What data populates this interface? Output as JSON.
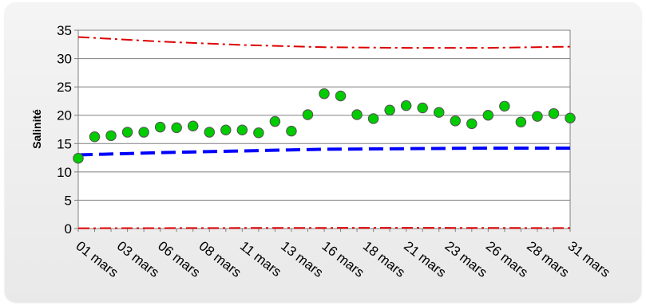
{
  "chart_data": {
    "type": "line",
    "title": "",
    "xlabel": "",
    "ylabel": "Salinité",
    "ylim": [
      0,
      35
    ],
    "yticks": [
      0,
      5,
      10,
      15,
      20,
      25,
      30,
      35
    ],
    "grid": "horizontal",
    "legend": "none",
    "x_tick_labels": [
      "01 mars",
      "03 mars",
      "06 mars",
      "08 mars",
      "11 mars",
      "13 mars",
      "16 mars",
      "18 mars",
      "21 mars",
      "23 mars",
      "26 mars",
      "28 mars",
      "31 mars"
    ],
    "series": [
      {
        "role": "observations",
        "color": "#00cc00",
        "marker": "circle",
        "points": [
          {
            "day": 0.0,
            "value": 12.4
          },
          {
            "day": 1.0,
            "value": 16.2
          },
          {
            "day": 2.0,
            "value": 16.4
          },
          {
            "day": 3.0,
            "value": 17.0
          },
          {
            "day": 4.0,
            "value": 17.0
          },
          {
            "day": 5.0,
            "value": 17.9
          },
          {
            "day": 6.0,
            "value": 17.8
          },
          {
            "day": 7.0,
            "value": 18.1
          },
          {
            "day": 8.0,
            "value": 17.0
          },
          {
            "day": 9.0,
            "value": 17.4
          },
          {
            "day": 10.0,
            "value": 17.4
          },
          {
            "day": 11.0,
            "value": 16.9
          },
          {
            "day": 12.0,
            "value": 18.9
          },
          {
            "day": 13.0,
            "value": 17.2
          },
          {
            "day": 14.0,
            "value": 20.1
          },
          {
            "day": 15.0,
            "value": 23.8
          },
          {
            "day": 16.0,
            "value": 23.4
          },
          {
            "day": 17.0,
            "value": 20.1
          },
          {
            "day": 18.0,
            "value": 19.4
          },
          {
            "day": 19.0,
            "value": 20.9
          },
          {
            "day": 20.0,
            "value": 21.7
          },
          {
            "day": 21.0,
            "value": 21.3
          },
          {
            "day": 22.0,
            "value": 20.5
          },
          {
            "day": 23.0,
            "value": 19.0
          },
          {
            "day": 24.0,
            "value": 18.5
          },
          {
            "day": 25.0,
            "value": 20.0
          },
          {
            "day": 26.0,
            "value": 21.6
          },
          {
            "day": 27.0,
            "value": 18.8
          },
          {
            "day": 28.0,
            "value": 19.8
          },
          {
            "day": 29.0,
            "value": 20.3
          },
          {
            "day": 30.0,
            "value": 19.5
          }
        ]
      },
      {
        "role": "upper-envelope",
        "color": "#dd0000",
        "style": "dash-dot",
        "points": [
          {
            "day": 0,
            "value": 33.8
          },
          {
            "day": 5,
            "value": 33.0
          },
          {
            "day": 10,
            "value": 32.4
          },
          {
            "day": 15,
            "value": 32.0
          },
          {
            "day": 20,
            "value": 31.9
          },
          {
            "day": 25,
            "value": 31.9
          },
          {
            "day": 30,
            "value": 32.1
          }
        ]
      },
      {
        "role": "mean-trend",
        "color": "#0000ff",
        "style": "dash",
        "points": [
          {
            "day": 0,
            "value": 13.0
          },
          {
            "day": 5,
            "value": 13.4
          },
          {
            "day": 10,
            "value": 13.7
          },
          {
            "day": 15,
            "value": 14.0
          },
          {
            "day": 20,
            "value": 14.1
          },
          {
            "day": 25,
            "value": 14.2
          },
          {
            "day": 30,
            "value": 14.2
          }
        ]
      },
      {
        "role": "lower-envelope",
        "color": "#dd0000",
        "style": "dash-dot",
        "points": [
          {
            "day": 0,
            "value": 0.05
          },
          {
            "day": 10,
            "value": 0.1
          },
          {
            "day": 20,
            "value": 0.12
          },
          {
            "day": 30,
            "value": 0.08
          }
        ]
      }
    ]
  }
}
